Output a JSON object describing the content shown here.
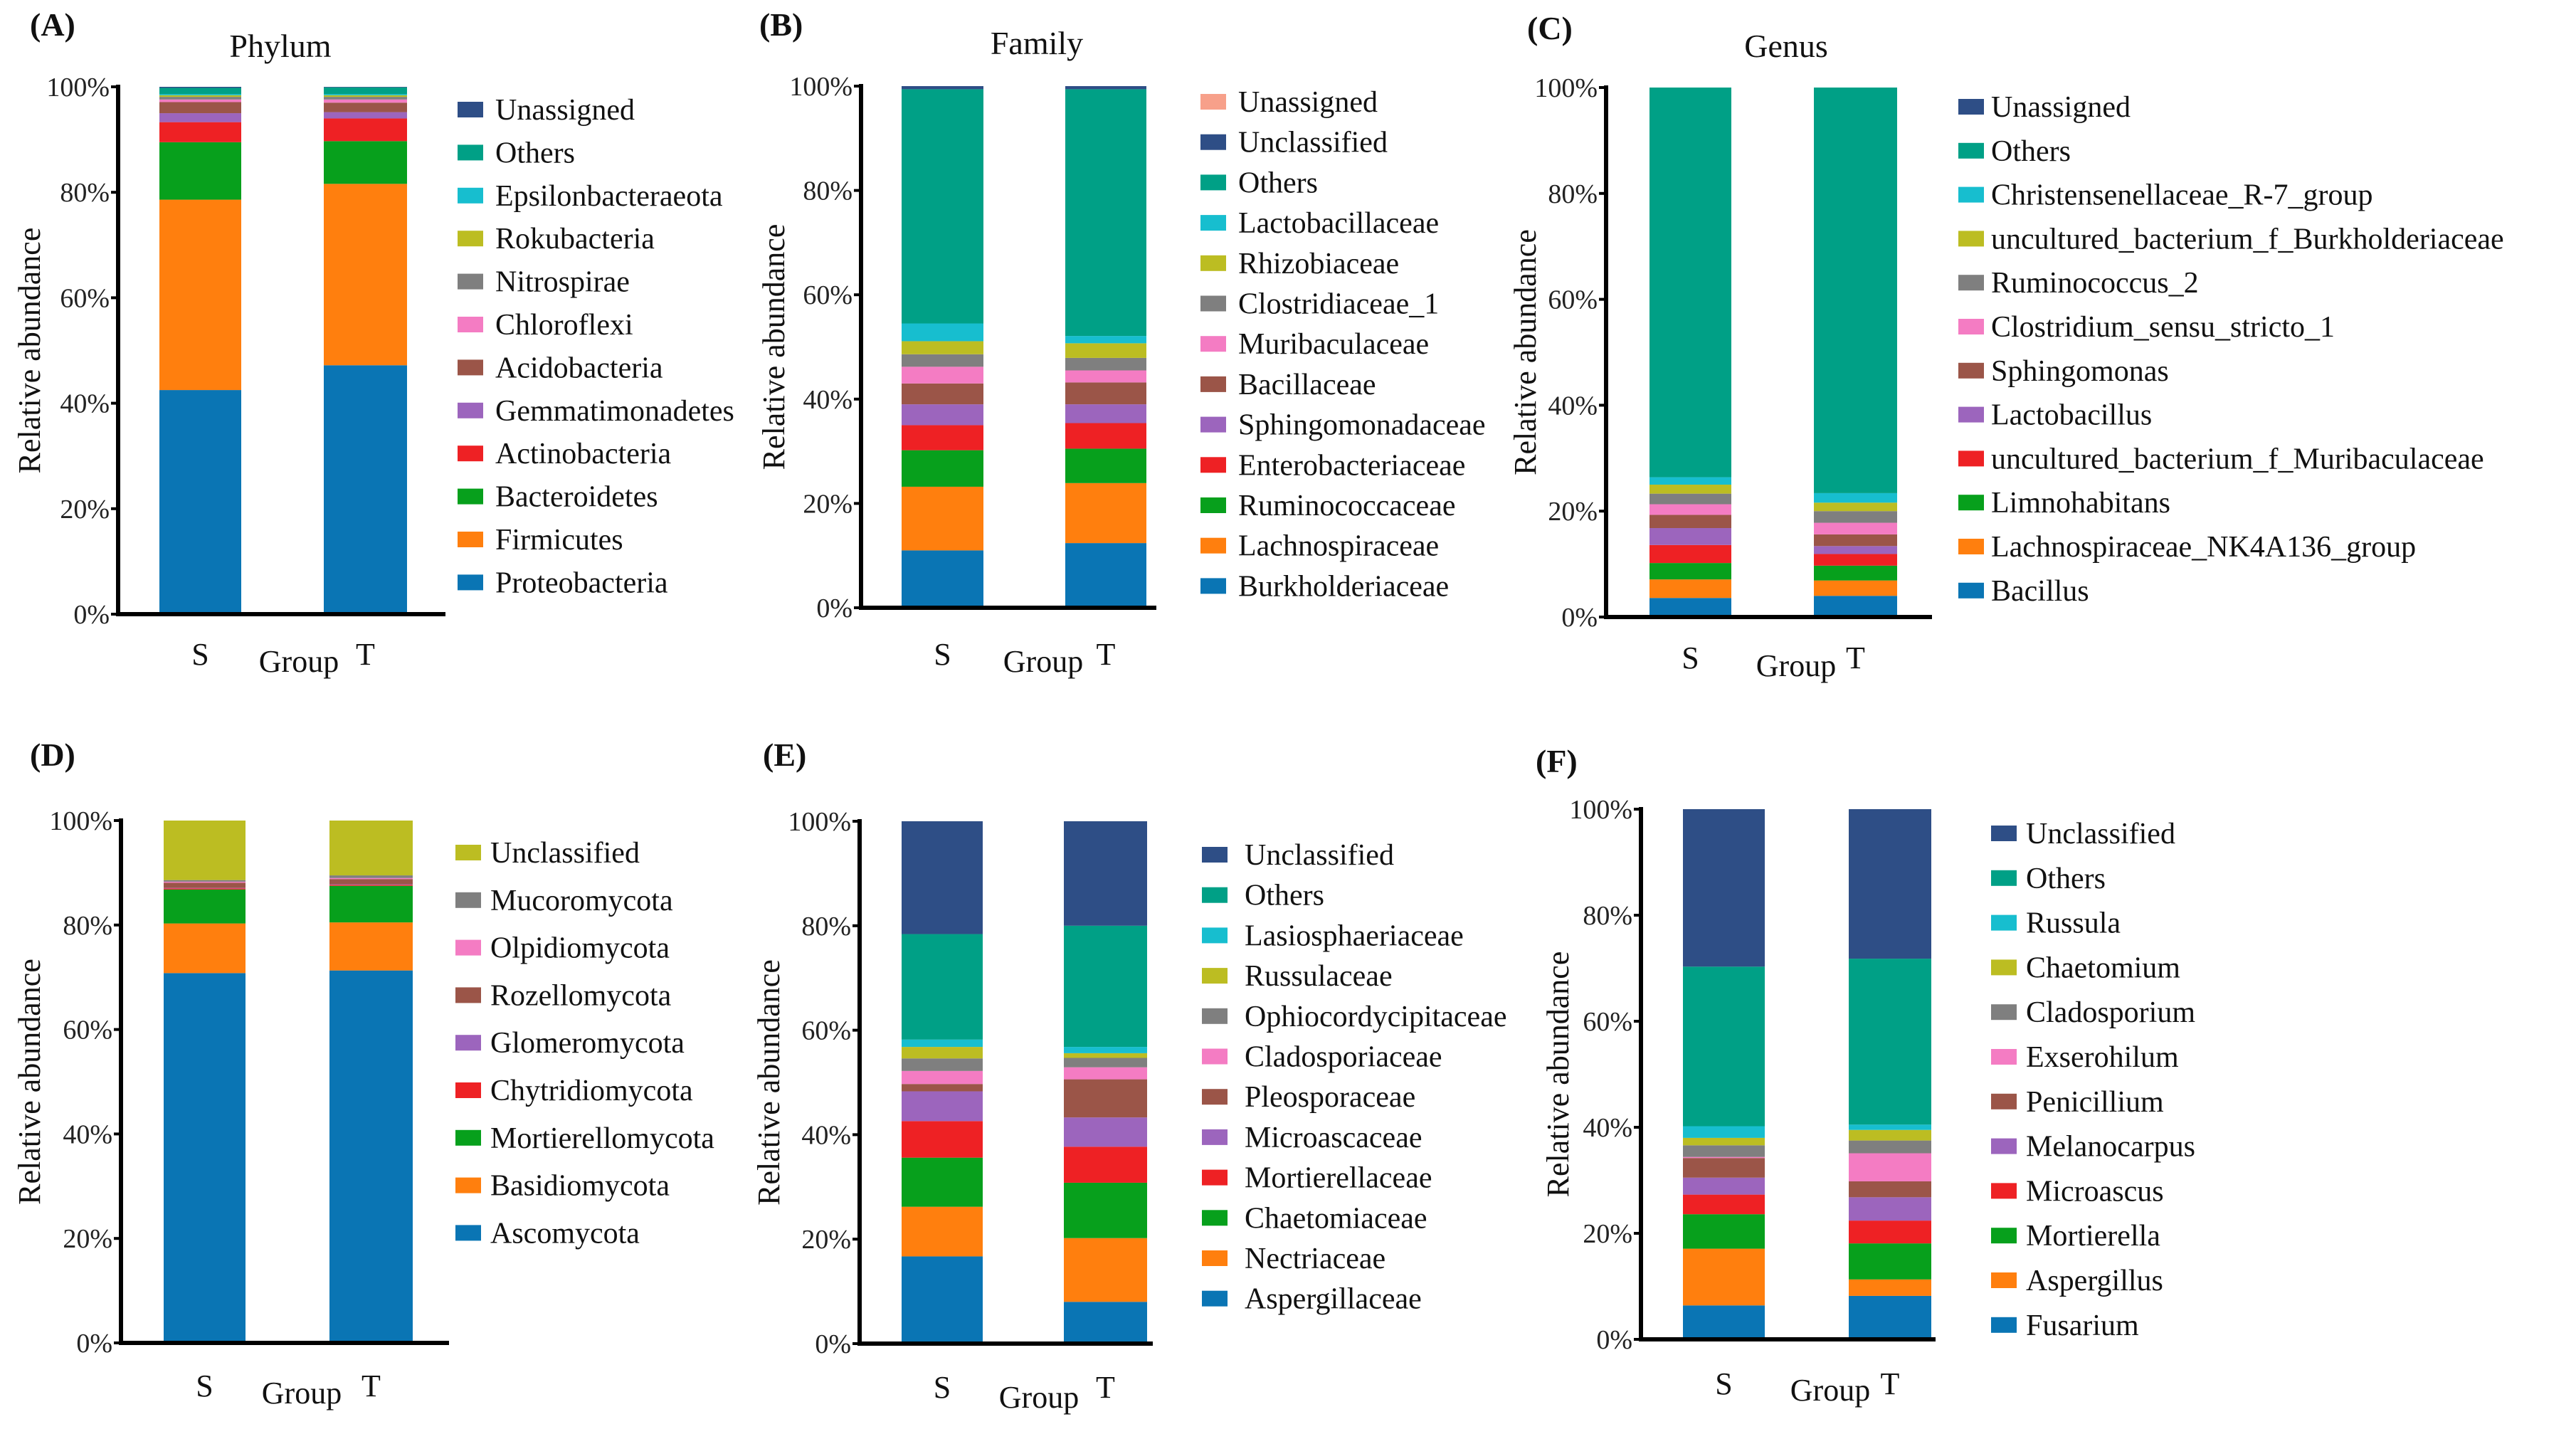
{
  "chart_data": [
    {
      "panel": "(A)",
      "title": "Phylum",
      "type": "bar",
      "stacked": true,
      "categories": [
        "S",
        "T"
      ],
      "xlabel": "Group",
      "ylabel": "Relative abundance",
      "ylim": [
        0,
        100
      ],
      "yticks": [
        "0%",
        "20%",
        "40%",
        "60%",
        "80%",
        "100%"
      ],
      "legend": "right",
      "series": [
        {
          "name": "Unassigned",
          "color": "#2e4e86",
          "values": [
            0.2,
            0.1
          ]
        },
        {
          "name": "Others",
          "color": "#00a086",
          "values": [
            1.2,
            1.3
          ]
        },
        {
          "name": "Epsilonbacteraeota",
          "color": "#17becf",
          "values": [
            0.2,
            0.2
          ]
        },
        {
          "name": "Rokubacteria",
          "color": "#bcbd22",
          "values": [
            0.3,
            0.3
          ]
        },
        {
          "name": "Nitrospirae",
          "color": "#7f7f7f",
          "values": [
            0.5,
            0.5
          ]
        },
        {
          "name": "Chloroflexi",
          "color": "#f47cc3",
          "values": [
            0.5,
            0.6
          ]
        },
        {
          "name": "Acidobacteria",
          "color": "#9b5548",
          "values": [
            2.1,
            1.8
          ]
        },
        {
          "name": "Gemmatimonadetes",
          "color": "#9c65bd",
          "values": [
            1.7,
            1.2
          ]
        },
        {
          "name": "Actinobacteria",
          "color": "#ee2124",
          "values": [
            3.8,
            4.3
          ]
        },
        {
          "name": "Bacteroidetes",
          "color": "#07a01c",
          "values": [
            10.9,
            8.1
          ]
        },
        {
          "name": "Firmicutes",
          "color": "#ff7f0e",
          "values": [
            36.1,
            34.4
          ]
        },
        {
          "name": "Proteobacteria",
          "color": "#0a75b4",
          "values": [
            42.5,
            47.2
          ]
        }
      ]
    },
    {
      "panel": "(B)",
      "title": "Family",
      "type": "bar",
      "stacked": true,
      "categories": [
        "S",
        "T"
      ],
      "xlabel": "Group",
      "ylabel": "Relative abundance",
      "ylim": [
        0,
        100
      ],
      "yticks": [
        "0%",
        "20%",
        "40%",
        "60%",
        "80%",
        "100%"
      ],
      "legend": "right",
      "series": [
        {
          "name": "Unassigned",
          "color": "#f7a08a",
          "values": [
            0.0,
            0.0
          ]
        },
        {
          "name": "Unclassified",
          "color": "#2e4e86",
          "values": [
            0.6,
            0.6
          ]
        },
        {
          "name": "Others",
          "color": "#00a086",
          "values": [
            44.9,
            47.3
          ]
        },
        {
          "name": "Lactobacillaceae",
          "color": "#17becf",
          "values": [
            3.4,
            1.4
          ]
        },
        {
          "name": "Rhizobiaceae",
          "color": "#bcbd22",
          "values": [
            2.5,
            2.8
          ]
        },
        {
          "name": "Clostridiaceae_1",
          "color": "#7f7f7f",
          "values": [
            2.4,
            2.4
          ]
        },
        {
          "name": "Muribaculaceae",
          "color": "#f47cc3",
          "values": [
            3.2,
            2.3
          ]
        },
        {
          "name": "Bacillaceae",
          "color": "#9b5548",
          "values": [
            4.0,
            4.2
          ]
        },
        {
          "name": "Sphingomonadaceae",
          "color": "#9c65bd",
          "values": [
            4.0,
            3.6
          ]
        },
        {
          "name": "Enterobacteriaceae",
          "color": "#ee2124",
          "values": [
            4.8,
            4.9
          ]
        },
        {
          "name": "Ruminococcaceae",
          "color": "#07a01c",
          "values": [
            7.0,
            6.6
          ]
        },
        {
          "name": "Lachnospiraceae",
          "color": "#ff7f0e",
          "values": [
            12.2,
            11.5
          ]
        },
        {
          "name": "Burkholderiaceae",
          "color": "#0a75b4",
          "values": [
            11.0,
            12.4
          ]
        }
      ]
    },
    {
      "panel": "(C)",
      "title": "Genus",
      "type": "bar",
      "stacked": true,
      "categories": [
        "S",
        "T"
      ],
      "xlabel": "Group",
      "ylabel": "Relative abundance",
      "ylim": [
        0,
        100
      ],
      "yticks": [
        "0%",
        "20%",
        "40%",
        "60%",
        "80%",
        "100%"
      ],
      "legend": "right",
      "series": [
        {
          "name": "Unassigned",
          "color": "#2e4e86",
          "values": [
            0.0,
            0.0
          ]
        },
        {
          "name": "Others",
          "color": "#00a086",
          "values": [
            73.6,
            76.6
          ]
        },
        {
          "name": "Christensenellaceae_R-7_group",
          "color": "#17becf",
          "values": [
            1.4,
            1.8
          ]
        },
        {
          "name": "uncultured_bacterium_f_Burkholderiaceae",
          "color": "#bcbd22",
          "values": [
            1.7,
            1.6
          ]
        },
        {
          "name": "Ruminococcus_2",
          "color": "#7f7f7f",
          "values": [
            2.0,
            2.2
          ]
        },
        {
          "name": "Clostridium_sensu_stricto_1",
          "color": "#f47cc3",
          "values": [
            2.0,
            2.2
          ]
        },
        {
          "name": "Sphingomonas",
          "color": "#9b5548",
          "values": [
            2.5,
            2.2
          ]
        },
        {
          "name": "Lactobacillus",
          "color": "#9c65bd",
          "values": [
            3.2,
            1.5
          ]
        },
        {
          "name": "uncultured_bacterium_f_Muribaculaceae",
          "color": "#ee2124",
          "values": [
            3.4,
            2.2
          ]
        },
        {
          "name": "Limnohabitans",
          "color": "#07a01c",
          "values": [
            3.1,
            2.8
          ]
        },
        {
          "name": "Lachnospiraceae_NK4A136_group",
          "color": "#ff7f0e",
          "values": [
            3.5,
            2.9
          ]
        },
        {
          "name": "Bacillus",
          "color": "#0a75b4",
          "values": [
            3.6,
            4.0
          ]
        }
      ]
    },
    {
      "panel": "(D)",
      "title": "",
      "type": "bar",
      "stacked": true,
      "categories": [
        "S",
        "T"
      ],
      "xlabel": "Group",
      "ylabel": "Relative abundance",
      "ylim": [
        0,
        100
      ],
      "yticks": [
        "0%",
        "20%",
        "40%",
        "60%",
        "80%",
        "100%"
      ],
      "legend": "right",
      "series": [
        {
          "name": "Unclassified",
          "color": "#bcbd22",
          "values": [
            11.4,
            10.5
          ]
        },
        {
          "name": "Mucoromycota",
          "color": "#7f7f7f",
          "values": [
            0.3,
            0.5
          ]
        },
        {
          "name": "Olpidiomycota",
          "color": "#f47cc3",
          "values": [
            0.2,
            0.2
          ]
        },
        {
          "name": "Rozellomycota",
          "color": "#9b5548",
          "values": [
            1.0,
            1.0
          ]
        },
        {
          "name": "Glomeromycota",
          "color": "#9c65bd",
          "values": [
            0.1,
            0.1
          ]
        },
        {
          "name": "Chytridiomycota",
          "color": "#ee2124",
          "values": [
            0.2,
            0.2
          ]
        },
        {
          "name": "Mortierellomycota",
          "color": "#07a01c",
          "values": [
            6.5,
            7.0
          ]
        },
        {
          "name": "Basidiomycota",
          "color": "#ff7f0e",
          "values": [
            9.5,
            9.2
          ]
        },
        {
          "name": "Ascomycota",
          "color": "#0a75b4",
          "values": [
            70.8,
            71.3
          ]
        }
      ]
    },
    {
      "panel": "(E)",
      "title": "",
      "type": "bar",
      "stacked": true,
      "categories": [
        "S",
        "T"
      ],
      "xlabel": "Group",
      "ylabel": "Relative abundance",
      "ylim": [
        0,
        100
      ],
      "yticks": [
        "0%",
        "20%",
        "40%",
        "60%",
        "80%",
        "100%"
      ],
      "legend": "right",
      "series": [
        {
          "name": "Unclassified",
          "color": "#2e4e86",
          "values": [
            21.6,
            20.0
          ]
        },
        {
          "name": "Others",
          "color": "#00a086",
          "values": [
            20.2,
            23.2
          ]
        },
        {
          "name": "Lasiosphaeriaceae",
          "color": "#17becf",
          "values": [
            1.4,
            1.2
          ]
        },
        {
          "name": "Russulaceae",
          "color": "#bcbd22",
          "values": [
            2.2,
            0.9
          ]
        },
        {
          "name": "Ophiocordycipitaceae",
          "color": "#7f7f7f",
          "values": [
            2.4,
            1.8
          ]
        },
        {
          "name": "Cladosporiaceae",
          "color": "#f47cc3",
          "values": [
            2.5,
            2.3
          ]
        },
        {
          "name": "Pleosporaceae",
          "color": "#9b5548",
          "values": [
            1.4,
            7.3
          ]
        },
        {
          "name": "Microascaceae",
          "color": "#9c65bd",
          "values": [
            5.7,
            5.6
          ]
        },
        {
          "name": "Mortierellaceae",
          "color": "#ee2124",
          "values": [
            7.0,
            6.9
          ]
        },
        {
          "name": "Chaetomiaceae",
          "color": "#07a01c",
          "values": [
            9.4,
            10.6
          ]
        },
        {
          "name": "Nectriaceae",
          "color": "#ff7f0e",
          "values": [
            9.5,
            12.2
          ]
        },
        {
          "name": "Aspergillaceae",
          "color": "#0a75b4",
          "values": [
            16.7,
            8.0
          ]
        }
      ]
    },
    {
      "panel": "(F)",
      "title": "",
      "type": "bar",
      "stacked": true,
      "categories": [
        "S",
        "T"
      ],
      "xlabel": "Group",
      "ylabel": "Relative abundance",
      "ylim": [
        0,
        100
      ],
      "yticks": [
        "0%",
        "20%",
        "40%",
        "60%",
        "80%",
        "100%"
      ],
      "legend": "right",
      "series": [
        {
          "name": "Unclassified",
          "color": "#2e4e86",
          "values": [
            29.7,
            28.2
          ]
        },
        {
          "name": "Others",
          "color": "#00a086",
          "values": [
            30.1,
            31.3
          ]
        },
        {
          "name": "Russula",
          "color": "#17becf",
          "values": [
            2.2,
            1.0
          ]
        },
        {
          "name": "Chaetomium",
          "color": "#bcbd22",
          "values": [
            1.4,
            2.0
          ]
        },
        {
          "name": "Cladosporium",
          "color": "#7f7f7f",
          "values": [
            2.2,
            2.4
          ]
        },
        {
          "name": "Exserohilum",
          "color": "#f47cc3",
          "values": [
            0.2,
            5.3
          ]
        },
        {
          "name": "Penicillium",
          "color": "#9b5548",
          "values": [
            3.7,
            3.0
          ]
        },
        {
          "name": "Melanocarpus",
          "color": "#9c65bd",
          "values": [
            3.2,
            4.4
          ]
        },
        {
          "name": "Microascus",
          "color": "#ee2124",
          "values": [
            3.7,
            4.3
          ]
        },
        {
          "name": "Mortierella",
          "color": "#07a01c",
          "values": [
            6.5,
            6.8
          ]
        },
        {
          "name": "Aspergillus",
          "color": "#ff7f0e",
          "values": [
            10.7,
            3.1
          ]
        },
        {
          "name": "Fusarium",
          "color": "#0a75b4",
          "values": [
            6.4,
            8.2
          ]
        }
      ]
    }
  ]
}
